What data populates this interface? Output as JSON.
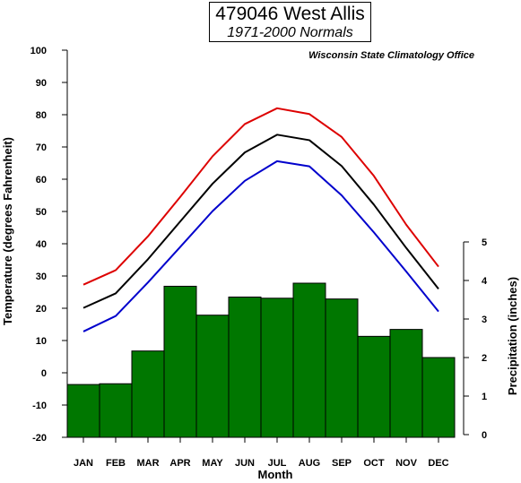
{
  "chart_data": {
    "type": "bar",
    "title": "479046 West Allis",
    "subtitle": "1971-2000 Normals",
    "source": "Wisconsin State Climatology Office",
    "xlabel": "Month",
    "ylabel_left": "Temperature (degrees Fahrenheit)",
    "ylabel_right": "Precipitation (inches)",
    "categories": [
      "JAN",
      "FEB",
      "MAR",
      "APR",
      "MAY",
      "JUN",
      "JUL",
      "AUG",
      "SEP",
      "OCT",
      "NOV",
      "DEC"
    ],
    "left_axis": {
      "min": -20,
      "max": 100,
      "ticks": [
        -20,
        -10,
        0,
        10,
        20,
        30,
        40,
        50,
        60,
        70,
        80,
        90,
        100
      ]
    },
    "right_axis": {
      "min": 0,
      "max": 5,
      "ticks": [
        0,
        1,
        2,
        3,
        4,
        5
      ]
    },
    "precipitation": [
      1.3,
      1.32,
      2.17,
      3.85,
      3.1,
      3.57,
      3.54,
      3.93,
      3.52,
      2.55,
      2.73,
      2.0
    ],
    "temperature_lines": [
      {
        "color": "#dd0000",
        "values": [
          27.3,
          31.8,
          42.3,
          54.5,
          67.1,
          77.1,
          82.0,
          80.2,
          73.1,
          61.0,
          45.9,
          32.9
        ]
      },
      {
        "color": "#000000",
        "values": [
          20.1,
          24.6,
          35.2,
          46.9,
          58.6,
          68.3,
          73.8,
          72.1,
          64.1,
          52.1,
          38.7,
          26.0
        ]
      },
      {
        "color": "#0000cc",
        "values": [
          12.8,
          17.6,
          28.0,
          39.0,
          50.1,
          59.5,
          65.6,
          64.0,
          55.0,
          43.5,
          31.4,
          19.0
        ]
      }
    ],
    "bar_color": "#007700",
    "grid": false,
    "legend": "none"
  }
}
